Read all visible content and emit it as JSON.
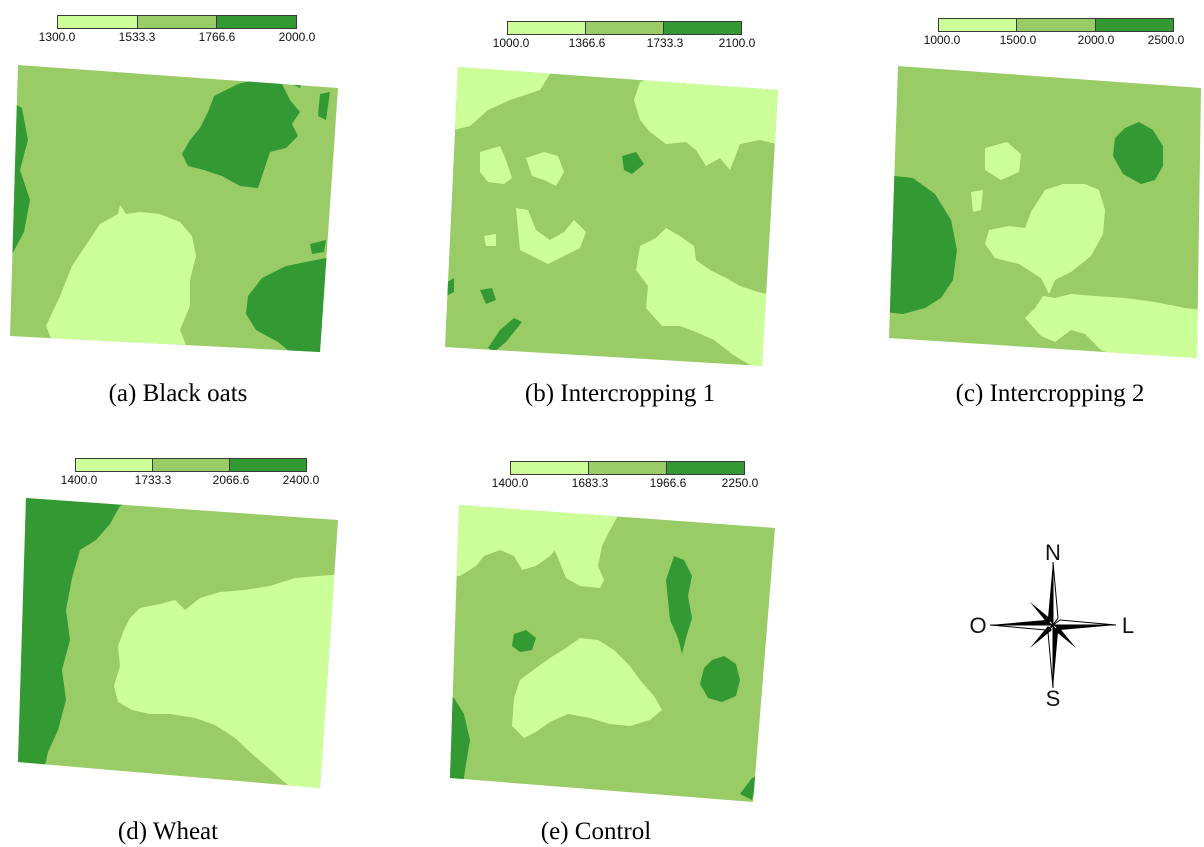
{
  "colors": {
    "low": "#ccff99",
    "mid": "#99cc66",
    "high": "#339933"
  },
  "panels": [
    {
      "id": "a",
      "caption": "(a) Black oats",
      "legend_ticks": [
        "1300.0",
        "1533.3",
        "1766.6",
        "2000.0"
      ]
    },
    {
      "id": "b",
      "caption": "(b) Intercropping 1",
      "legend_ticks": [
        "1000.0",
        "1366.6",
        "1733.3",
        "2100.0"
      ]
    },
    {
      "id": "c",
      "caption": "(c) Intercropping 2",
      "legend_ticks": [
        "1000.0",
        "1500.0",
        "2000.0",
        "2500.0"
      ]
    },
    {
      "id": "d",
      "caption": "(d) Wheat",
      "legend_ticks": [
        "1400.0",
        "1733.3",
        "2066.6",
        "2400.0"
      ]
    },
    {
      "id": "e",
      "caption": "(e) Control",
      "legend_ticks": [
        "1400.0",
        "1683.3",
        "1966.6",
        "2250.0"
      ]
    }
  ],
  "compass": {
    "north": "N",
    "south": "S",
    "east": "L",
    "west": "O"
  }
}
